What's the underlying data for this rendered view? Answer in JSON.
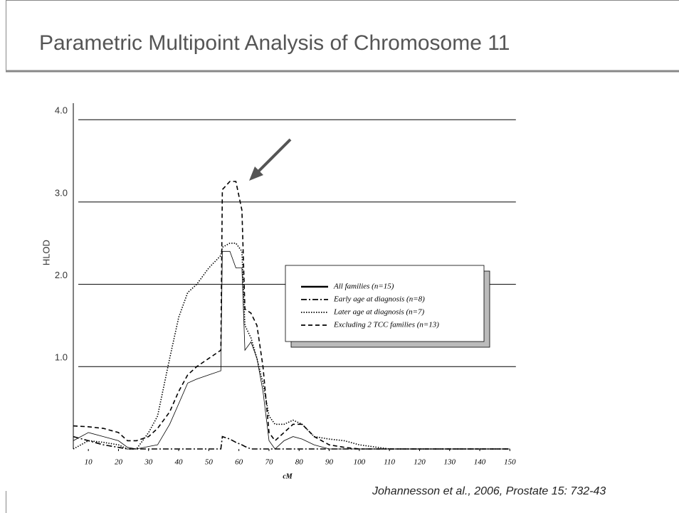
{
  "chart_data": {
    "type": "line",
    "title": "Parametric Multipoint Analysis of Chromosome 11",
    "y_label": "HLOD",
    "x_label": "cM",
    "citation": "Johannesson et al., 2006, Prostate 15: 732-43",
    "xlim": [
      5,
      152
    ],
    "ylim": [
      0,
      4.2
    ],
    "xticks": [
      10,
      20,
      30,
      40,
      50,
      60,
      70,
      80,
      90,
      100,
      110,
      120,
      130,
      140,
      150
    ],
    "yticks": [
      {
        "value": 1,
        "label": "1.0"
      },
      {
        "value": 2,
        "label": "2.0"
      },
      {
        "value": 3,
        "label": "3.0"
      },
      {
        "value": 4,
        "label": "4.0"
      }
    ],
    "grid": true,
    "legend": "right",
    "x": [
      5,
      10,
      15,
      20,
      23,
      26,
      30,
      33,
      37,
      40,
      43,
      46,
      50,
      54,
      54.5,
      57,
      59,
      61,
      62,
      64,
      66,
      68,
      70,
      72,
      75,
      78,
      81,
      85,
      90,
      95,
      100,
      110,
      120,
      150
    ],
    "series": [
      {
        "name": "All families (n=15)",
        "color": "#000000",
        "dash": "solid",
        "values": [
          0.1,
          0.2,
          0.15,
          0.1,
          0.02,
          0.0,
          0.03,
          0.05,
          0.3,
          0.55,
          0.8,
          0.85,
          0.9,
          0.95,
          2.4,
          2.4,
          2.2,
          2.2,
          1.2,
          1.3,
          1.1,
          0.7,
          0.1,
          0.0,
          0.1,
          0.15,
          0.12,
          0.05,
          0.0,
          0,
          0,
          0,
          0,
          0
        ]
      },
      {
        "name": "Early age at diagnosis (n=8)",
        "color": "#000000",
        "dash": "dashdot",
        "values": [
          0.15,
          0.1,
          0.05,
          0.02,
          0,
          0,
          0,
          0,
          0,
          0,
          0,
          0,
          0,
          0,
          0.15,
          0.12,
          0.08,
          0.05,
          0.03,
          0,
          0,
          0,
          0,
          0,
          0,
          0,
          0,
          0,
          0,
          0,
          0,
          0,
          0,
          0
        ]
      },
      {
        "name": "Later age at diagnosis (n=7)",
        "color": "#000000",
        "dash": "dotted",
        "values": [
          0.0,
          0.1,
          0.08,
          0.05,
          0.0,
          0.0,
          0.2,
          0.4,
          1.1,
          1.6,
          1.9,
          2.0,
          2.2,
          2.35,
          2.45,
          2.5,
          2.5,
          2.4,
          1.5,
          1.35,
          1.1,
          0.8,
          0.4,
          0.3,
          0.3,
          0.35,
          0.3,
          0.15,
          0.12,
          0.1,
          0.05,
          0,
          0,
          0
        ]
      },
      {
        "name": "Excluding 2 TCC families (n=13)",
        "color": "#000000",
        "dash": "dashed",
        "values": [
          0.28,
          0.27,
          0.25,
          0.2,
          0.1,
          0.1,
          0.15,
          0.25,
          0.45,
          0.7,
          0.9,
          1.0,
          1.1,
          1.2,
          3.15,
          3.25,
          3.25,
          2.9,
          1.7,
          1.65,
          1.5,
          1.0,
          0.2,
          0.1,
          0.2,
          0.3,
          0.3,
          0.15,
          0.05,
          0.02,
          0,
          0,
          0,
          0
        ]
      }
    ]
  }
}
